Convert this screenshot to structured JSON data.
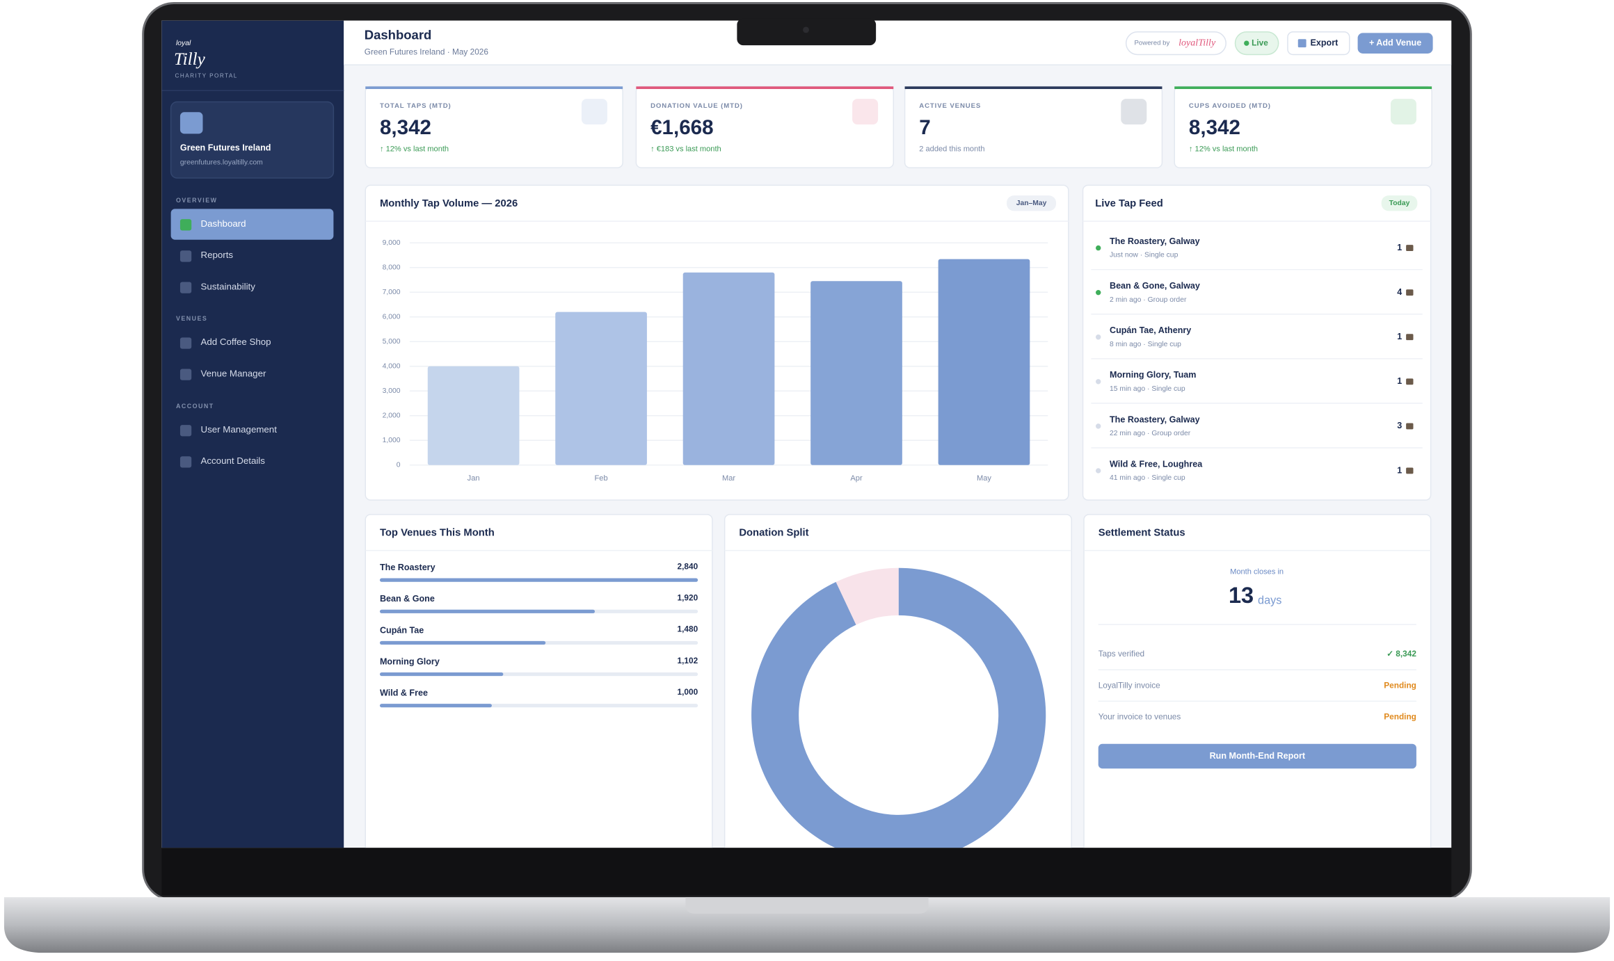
{
  "sidebar": {
    "logo_small": "loyal",
    "logo": "Tilly",
    "portal": "CHARITY PORTAL",
    "org_name": "Green Futures Ireland",
    "org_url": "greenfutures.loyaltilly.com",
    "sections": [
      {
        "title": "OVERVIEW",
        "items": [
          "Dashboard",
          "Reports",
          "Sustainability"
        ]
      },
      {
        "title": "VENUES",
        "items": [
          "Add Coffee Shop",
          "Venue Manager"
        ]
      },
      {
        "title": "ACCOUNT",
        "items": [
          "User Management",
          "Account Details"
        ]
      }
    ]
  },
  "header": {
    "title": "Dashboard",
    "subtitle": "Green Futures Ireland · May 2026",
    "powered_by": "Powered by",
    "powered_brand": "loyalTilly",
    "live": "Live",
    "export": "Export",
    "add_venue": "+ Add Venue"
  },
  "kpis": [
    {
      "label": "TOTAL TAPS (MTD)",
      "value": "8,342",
      "change": "↑ 12% vs last month",
      "accent": "#7b9bd1",
      "change_color": "#3a9a55"
    },
    {
      "label": "DONATION VALUE (MTD)",
      "value": "€1,668",
      "change": "↑ €183 vs last month",
      "accent": "#e0587c",
      "change_color": "#3a9a55"
    },
    {
      "label": "ACTIVE VENUES",
      "value": "7",
      "change": "2 added this month",
      "accent": "#2b3a5c",
      "change_color": "#7b8aa8"
    },
    {
      "label": "CUPS AVOIDED (MTD)",
      "value": "8,342",
      "change": "↑ 12% vs last month",
      "accent": "#3fae5a",
      "change_color": "#3a9a55"
    }
  ],
  "chart_data": [
    {
      "type": "bar",
      "title": "Monthly Tap Volume — 2026",
      "badge": "Jan–May",
      "categories": [
        "Jan",
        "Feb",
        "Mar",
        "Apr",
        "May"
      ],
      "values": [
        4000,
        6200,
        7800,
        7450,
        8342
      ],
      "colors": [
        "#c5d5ec",
        "#aec3e6",
        "#9ab3de",
        "#86a4d6",
        "#7b9bd1"
      ],
      "ylim": [
        0,
        9000
      ],
      "yticks": [
        0,
        {
          "value": 1000,
          "label": "1,000"
        },
        {
          "value": 2000,
          "label": "2,000"
        },
        {
          "value": 3000,
          "label": "3,000"
        },
        {
          "value": 4000,
          "label": "4,000"
        },
        {
          "value": 5000,
          "label": "5,000"
        },
        {
          "value": 6000,
          "label": "6,000"
        },
        {
          "value": 7000,
          "label": "7,000"
        },
        {
          "value": 8000,
          "label": "8,000"
        },
        {
          "value": 9000,
          "label": "9,000"
        }
      ],
      "grid": true
    },
    {
      "type": "hbar",
      "title": "Top Venues This Month",
      "categories": [
        "The Roastery",
        "Bean & Gone",
        "Cupán Tae",
        "Morning Glory",
        "Wild & Free"
      ],
      "values": [
        2840,
        1920,
        1480,
        1102,
        1000
      ],
      "value_labels": [
        "2,840",
        "1,920",
        "1,480",
        "1,102",
        "1,000"
      ],
      "color": "#7b9bd1"
    },
    {
      "type": "donut",
      "title": "Donation Split",
      "values": [
        93,
        7
      ],
      "colors": [
        "#7b9bd1",
        "#f8e3ea"
      ]
    }
  ],
  "feed": {
    "title": "Live Tap Feed",
    "badge": "Today",
    "items": [
      {
        "venue": "The Roastery, Galway",
        "meta": "Just now · Single cup",
        "count": 1,
        "live": true
      },
      {
        "venue": "Bean & Gone, Galway",
        "meta": "2 min ago · Group order",
        "count": 4,
        "live": true
      },
      {
        "venue": "Cupán Tae, Athenry",
        "meta": "8 min ago · Single cup",
        "count": 1,
        "live": false
      },
      {
        "venue": "Morning Glory, Tuam",
        "meta": "15 min ago · Single cup",
        "count": 1,
        "live": false
      },
      {
        "venue": "The Roastery, Galway",
        "meta": "22 min ago · Group order",
        "count": 3,
        "live": false
      },
      {
        "venue": "Wild & Free, Loughrea",
        "meta": "41 min ago · Single cup",
        "count": 1,
        "live": false
      }
    ]
  },
  "settlement": {
    "title": "Settlement Status",
    "closes_label": "Month closes in",
    "days": "13",
    "days_unit": "days",
    "rows": [
      {
        "label": "Taps verified",
        "value": "✓ 8,342",
        "color": "#3a9a55"
      },
      {
        "label": "LoyalTilly invoice",
        "value": "Pending",
        "color": "#e08a1e"
      },
      {
        "label": "Your invoice to venues",
        "value": "Pending",
        "color": "#e08a1e"
      }
    ],
    "button": "Run Month-End Report"
  }
}
